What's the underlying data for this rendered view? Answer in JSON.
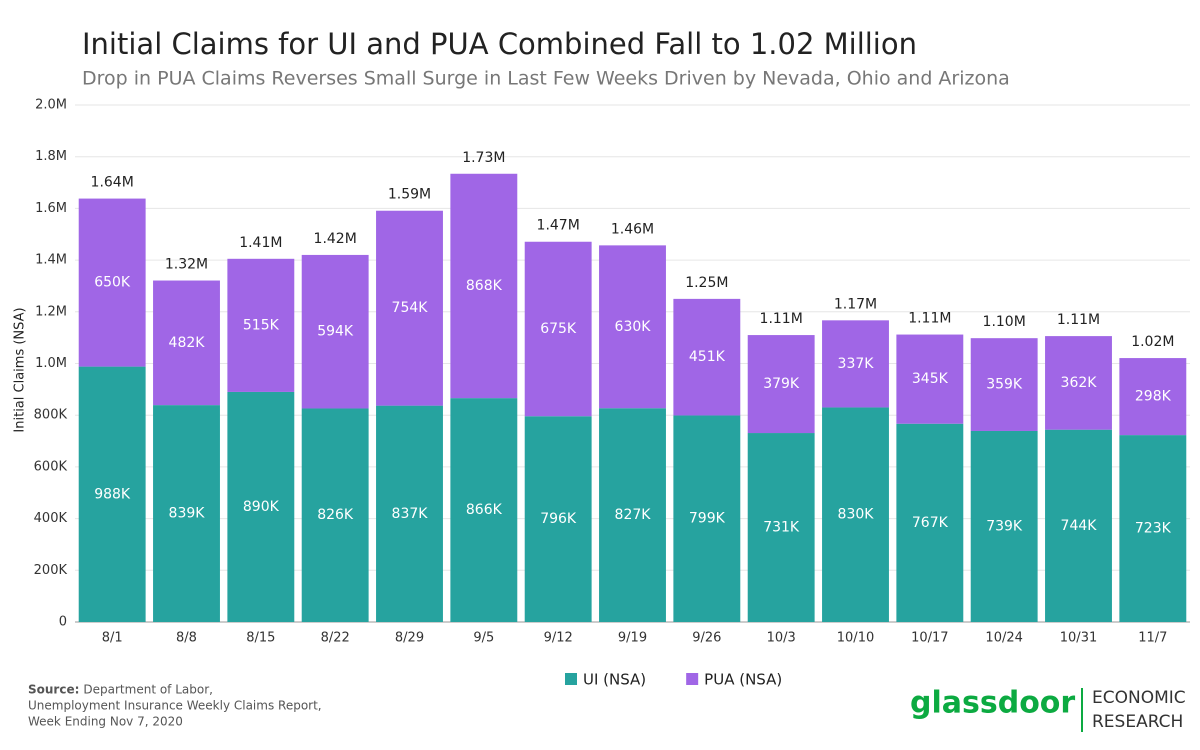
{
  "chart_data": {
    "type": "stacked_bar",
    "title": "Initial Claims for UI and PUA Combined Fall to 1.02 Million",
    "subtitle": "Drop in PUA Claims Reverses Small Surge in Last Few Weeks Driven by Nevada, Ohio and Arizona",
    "y_label": "Initial Claims (NSA)",
    "categories": [
      "8/1",
      "8/8",
      "8/15",
      "8/22",
      "8/29",
      "9/5",
      "9/12",
      "9/19",
      "9/26",
      "10/3",
      "10/10",
      "10/17",
      "10/24",
      "10/31",
      "11/7"
    ],
    "series": [
      {
        "name": "UI (NSA)",
        "color": "#26a39f",
        "values": [
          988000,
          839000,
          890000,
          826000,
          837000,
          866000,
          796000,
          827000,
          799000,
          731000,
          830000,
          767000,
          739000,
          744000,
          723000
        ],
        "value_labels": [
          "988K",
          "839K",
          "890K",
          "826K",
          "837K",
          "866K",
          "796K",
          "827K",
          "799K",
          "731K",
          "830K",
          "767K",
          "739K",
          "744K",
          "723K"
        ]
      },
      {
        "name": "PUA (NSA)",
        "color": "#a066e6",
        "values": [
          650000,
          482000,
          515000,
          594000,
          754000,
          868000,
          675000,
          630000,
          451000,
          379000,
          337000,
          345000,
          359000,
          362000,
          298000
        ],
        "value_labels": [
          "650K",
          "482K",
          "515K",
          "594K",
          "754K",
          "868K",
          "675K",
          "630K",
          "451K",
          "379K",
          "337K",
          "345K",
          "359K",
          "362K",
          "298K"
        ]
      }
    ],
    "total_labels": [
      "1.64M",
      "1.32M",
      "1.41M",
      "1.42M",
      "1.59M",
      "1.73M",
      "1.47M",
      "1.46M",
      "1.25M",
      "1.11M",
      "1.17M",
      "1.11M",
      "1.10M",
      "1.11M",
      "1.02M"
    ],
    "ylim": [
      0,
      2000000
    ],
    "yticks": [
      0,
      {
        "value": 200000,
        "label": "200K"
      },
      {
        "value": 400000,
        "label": "400K"
      },
      {
        "value": 600000,
        "label": "600K"
      },
      {
        "value": 800000,
        "label": "800K"
      },
      {
        "value": 1000000,
        "label": "1.0M"
      },
      {
        "value": 1200000,
        "label": "1.2M"
      },
      {
        "value": 1400000,
        "label": "1.4M"
      },
      {
        "value": 1600000,
        "label": "1.6M"
      },
      {
        "value": 1800000,
        "label": "1.8M"
      },
      {
        "value": 2000000,
        "label": "2.0M"
      }
    ],
    "grid": true,
    "legend": "bottom"
  },
  "source": {
    "label": "Source:",
    "lines": [
      "Department of Labor,",
      "Unemployment Insurance Weekly Claims Report,",
      "Week Ending Nov 7, 2020"
    ]
  },
  "logo": {
    "brand": "glassdoor",
    "lines": [
      "ECONOMIC",
      "RESEARCH"
    ]
  }
}
